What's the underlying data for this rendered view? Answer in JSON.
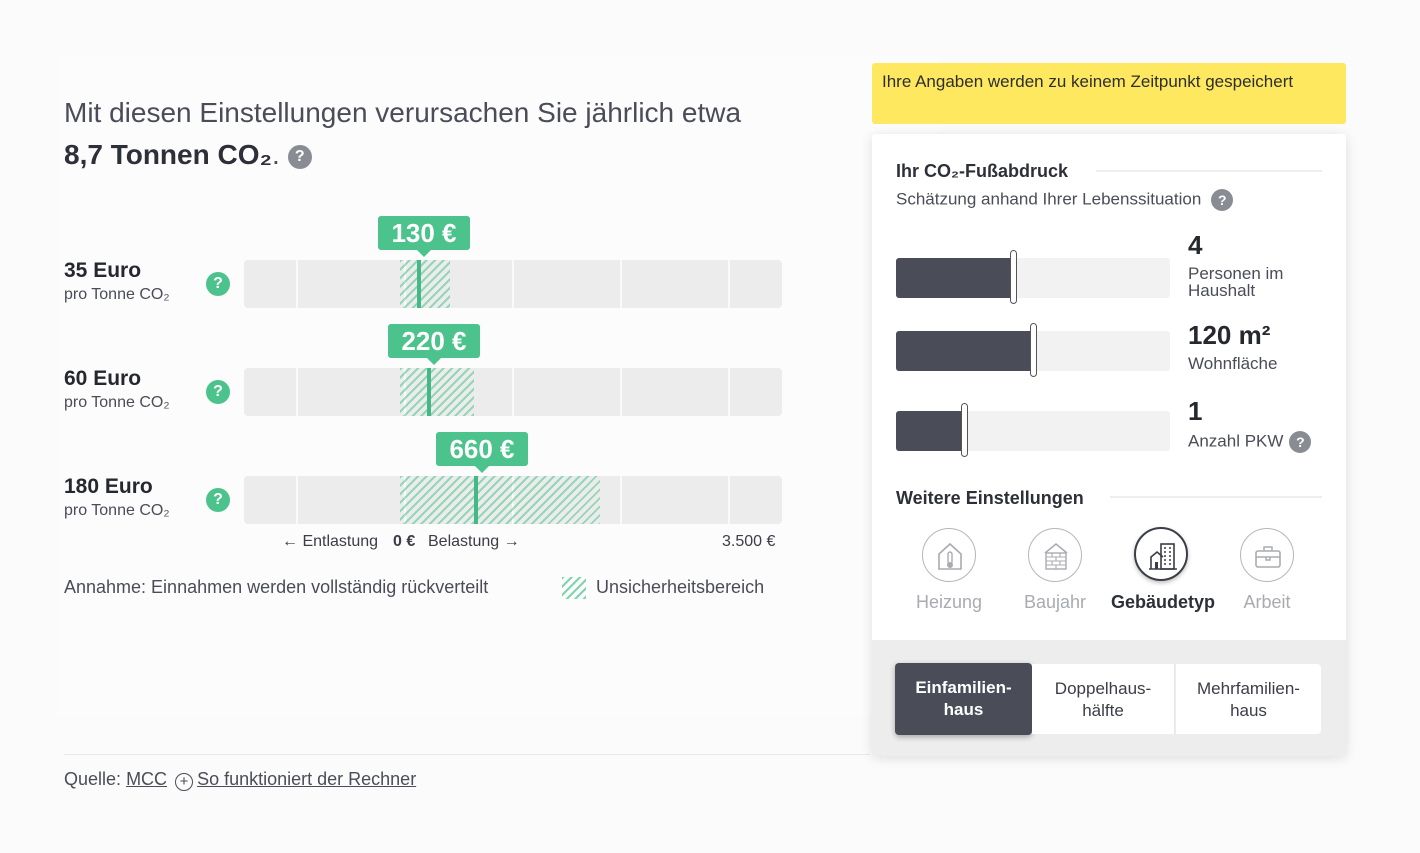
{
  "headline": {
    "prefix": "Mit diesen Einstellungen verursachen Sie jährlich etwa ",
    "amount": "8,7 Tonnen CO₂",
    "suffix": "."
  },
  "help_symbol": "?",
  "rows": [
    {
      "price": "35 Euro",
      "unit": "pro Tonne CO₂",
      "badge": "130 €"
    },
    {
      "price": "60 Euro",
      "unit": "pro Tonne CO₂",
      "badge": "220 €"
    },
    {
      "price": "180 Euro",
      "unit": "pro Tonne CO₂",
      "badge": "660 €"
    }
  ],
  "axis": {
    "left": "← Entlastung",
    "zero": "0 €",
    "right": "Belastung →",
    "max": "3.500 €"
  },
  "assumption": "Annahme: Einnahmen werden vollständig rückverteilt",
  "legend": "Unsicherheitsbereich",
  "footer": {
    "source_label": "Quelle:",
    "source_link": "MCC",
    "how_link": "So funktioniert der Rechner",
    "plus": "+"
  },
  "notice": "Ihre Angaben werden zu keinem Zeitpunkt gespeichert",
  "panel": {
    "title": "Ihr CO₂-Fußabdruck",
    "subtitle": "Schätzung anhand Ihrer Lebenssituation",
    "sliders": [
      {
        "value": "4",
        "label": "Personen im Haushalt",
        "fraction": 0.43
      },
      {
        "value": "120 m²",
        "label": "Wohnfläche",
        "fraction": 0.5
      },
      {
        "value": "1",
        "label": "Anzahl PKW",
        "fraction": 0.25
      }
    ],
    "more_title": "Weitere Einstellungen",
    "categories": [
      {
        "label": "Heizung",
        "icon": "house-thermometer-icon",
        "active": false
      },
      {
        "label": "Baujahr",
        "icon": "brick-house-icon",
        "active": false
      },
      {
        "label": "Gebäudetyp",
        "icon": "buildings-icon",
        "active": true
      },
      {
        "label": "Arbeit",
        "icon": "briefcase-icon",
        "active": false
      }
    ],
    "building_types": [
      {
        "line1": "Einfamilien-",
        "line2": "haus",
        "active": true
      },
      {
        "line1": "Doppelhaus-",
        "line2": "hälfte",
        "active": false
      },
      {
        "line1": "Mehrfamilien-",
        "line2": "haus",
        "active": false
      }
    ]
  },
  "colors": {
    "green": "#4cc38c",
    "dark": "#4a4c58",
    "yellow": "#fde85f"
  }
}
